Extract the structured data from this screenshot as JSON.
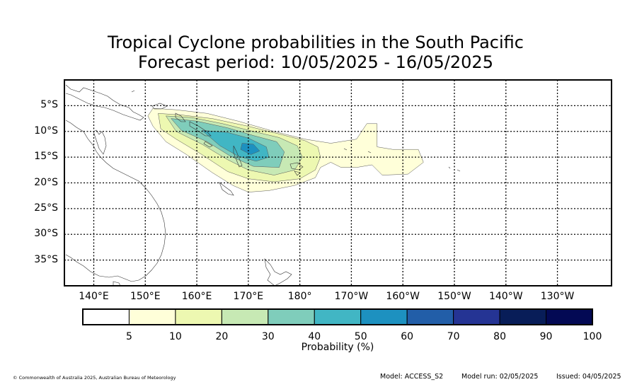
{
  "title": {
    "line1": "Tropical Cyclone probabilities in the South Pacific",
    "line2": "Forecast period: 10/05/2025 - 16/05/2025"
  },
  "map": {
    "projection": "equirectangular",
    "lon_range_east": [
      134.3,
      240.5
    ],
    "lat_range": [
      -40,
      0
    ],
    "lat_labels": [
      "5°S",
      "10°S",
      "15°S",
      "20°S",
      "25°S",
      "30°S",
      "35°S"
    ],
    "lat_values": [
      -5,
      -10,
      -15,
      -20,
      -25,
      -30,
      -35
    ],
    "lon_labels": [
      "140°E",
      "150°E",
      "160°E",
      "170°E",
      "180°",
      "170°W",
      "160°W",
      "150°W",
      "140°W",
      "130°W"
    ],
    "lon_values": [
      140,
      150,
      160,
      170,
      180,
      190,
      200,
      210,
      220,
      230
    ],
    "grid": "dotted",
    "probability_field": {
      "description_values_pct": "contours of probability",
      "levels": [
        5,
        10,
        20,
        30,
        40,
        50
      ],
      "contours": [
        {
          "level": 5,
          "points": [
            [
              151.5,
              -5.5
            ],
            [
              156,
              -5.8
            ],
            [
              162,
              -6.5
            ],
            [
              168,
              -8
            ],
            [
              175,
              -10
            ],
            [
              181,
              -11.5
            ],
            [
              186,
              -12.3
            ],
            [
              191,
              -11.5
            ],
            [
              193,
              -8.5
            ],
            [
              195,
              -8.5
            ],
            [
              195,
              -13
            ],
            [
              198,
              -13.5
            ],
            [
              203,
              -13.5
            ],
            [
              204,
              -16
            ],
            [
              201,
              -18.3
            ],
            [
              196,
              -18.5
            ],
            [
              194,
              -16.5
            ],
            [
              191,
              -17
            ],
            [
              188,
              -17
            ],
            [
              186,
              -16
            ],
            [
              184,
              -17
            ],
            [
              183,
              -19
            ],
            [
              179,
              -20.5
            ],
            [
              174,
              -21.5
            ],
            [
              170,
              -21.8
            ],
            [
              167,
              -20.5
            ],
            [
              163,
              -18
            ],
            [
              158,
              -14.5
            ],
            [
              154,
              -12
            ],
            [
              151.5,
              -9
            ],
            [
              150.5,
              -7
            ]
          ]
        },
        {
          "level": 10,
          "points": [
            [
              152.5,
              -6.5
            ],
            [
              157,
              -6.8
            ],
            [
              163,
              -7.5
            ],
            [
              170,
              -9
            ],
            [
              176,
              -10.5
            ],
            [
              181,
              -11.8
            ],
            [
              183.5,
              -13
            ],
            [
              184,
              -15
            ],
            [
              183,
              -17.5
            ],
            [
              180,
              -19.2
            ],
            [
              175,
              -19.8
            ],
            [
              170,
              -19.2
            ],
            [
              166,
              -17.8
            ],
            [
              161,
              -14.5
            ],
            [
              156,
              -11.5
            ],
            [
              153,
              -9.5
            ]
          ]
        },
        {
          "level": 20,
          "points": [
            [
              154,
              -7
            ],
            [
              159,
              -7.3
            ],
            [
              165,
              -8.5
            ],
            [
              171,
              -10
            ],
            [
              176,
              -11.2
            ],
            [
              179.5,
              -12.8
            ],
            [
              180.5,
              -15
            ],
            [
              179,
              -17.5
            ],
            [
              175,
              -18.5
            ],
            [
              170,
              -17.5
            ],
            [
              166,
              -15.5
            ],
            [
              161,
              -12.5
            ],
            [
              156,
              -10
            ]
          ]
        },
        {
          "level": 30,
          "points": [
            [
              155,
              -7.5
            ],
            [
              160,
              -8
            ],
            [
              166,
              -9.3
            ],
            [
              171,
              -10.8
            ],
            [
              175.5,
              -12
            ],
            [
              177,
              -14
            ],
            [
              176,
              -17
            ],
            [
              171,
              -16.8
            ],
            [
              166.5,
              -14.8
            ],
            [
              162,
              -12
            ],
            [
              157,
              -9.8
            ]
          ]
        },
        {
          "level": 40,
          "points": [
            [
              161,
              -9.8
            ],
            [
              166,
              -10.2
            ],
            [
              170,
              -11.3
            ],
            [
              173.5,
              -13
            ],
            [
              174,
              -15
            ],
            [
              171.5,
              -15.8
            ],
            [
              168,
              -14.8
            ],
            [
              164.5,
              -12.8
            ]
          ]
        },
        {
          "level": 50,
          "points": [
            [
              168.8,
              -12.3
            ],
            [
              171,
              -12.5
            ],
            [
              172.2,
              -13.8
            ],
            [
              170.5,
              -14.5
            ],
            [
              168.5,
              -13.5
            ]
          ]
        }
      ]
    }
  },
  "colorbar": {
    "levels": [
      0,
      5,
      10,
      20,
      30,
      40,
      50,
      60,
      70,
      80,
      90,
      100
    ],
    "tick_labels": [
      "5",
      "10",
      "20",
      "30",
      "40",
      "50",
      "60",
      "70",
      "80",
      "90",
      "100"
    ],
    "colors": [
      "#ffffff",
      "#ffffd9",
      "#edf8b1",
      "#c7e9b4",
      "#7fcdbb",
      "#41b6c4",
      "#1d91c0",
      "#225ea8",
      "#253494",
      "#081d58",
      "#030954"
    ],
    "label": "Probability (%)"
  },
  "footer": {
    "copyright": "© Commonwealth of Australia 2025, Australian Bureau of Meteorology",
    "model": "Model: ACCESS_S2",
    "model_run": "Model run: 02/05/2025",
    "issued": "Issued: 04/05/2025"
  }
}
